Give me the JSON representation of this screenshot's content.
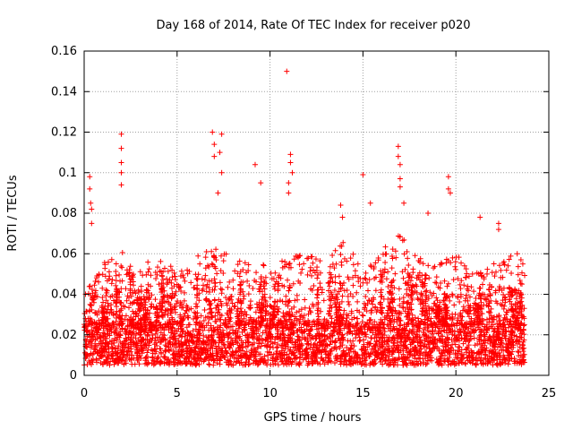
{
  "chart_data": {
    "type": "scatter",
    "title": "Day 168 of 2014, Rate Of TEC Index for receiver p020",
    "xlabel": "GPS time / hours",
    "ylabel": "ROTI / TECUs",
    "xlim": [
      0,
      25
    ],
    "ylim": [
      0,
      0.16
    ],
    "x_ticks": [
      0,
      5,
      10,
      15,
      20,
      25
    ],
    "x_tick_labels": [
      "0",
      "5",
      "10",
      "15",
      "20",
      "25"
    ],
    "y_ticks": [
      0,
      0.02,
      0.04,
      0.06,
      0.08,
      0.1,
      0.12,
      0.14,
      0.16
    ],
    "y_tick_labels": [
      "0",
      "0.02",
      "0.04",
      "0.06",
      "0.08",
      "0.1",
      "0.12",
      "0.14",
      "0.16"
    ],
    "grid": true,
    "marker": "plus",
    "series_color": "#ff0000",
    "x_data_range": [
      0,
      23.7
    ],
    "baseline_band": [
      0.005,
      0.025
    ],
    "peaks": [
      {
        "x": 2.0,
        "y": 0.119
      },
      {
        "x": 2.0,
        "y": 0.112
      },
      {
        "x": 2.0,
        "y": 0.105
      },
      {
        "x": 2.0,
        "y": 0.1
      },
      {
        "x": 2.0,
        "y": 0.094
      },
      {
        "x": 0.3,
        "y": 0.098
      },
      {
        "x": 0.3,
        "y": 0.092
      },
      {
        "x": 0.35,
        "y": 0.085
      },
      {
        "x": 0.4,
        "y": 0.082
      },
      {
        "x": 0.4,
        "y": 0.075
      },
      {
        "x": 6.9,
        "y": 0.12
      },
      {
        "x": 7.0,
        "y": 0.114
      },
      {
        "x": 7.0,
        "y": 0.108
      },
      {
        "x": 7.4,
        "y": 0.119
      },
      {
        "x": 7.3,
        "y": 0.11
      },
      {
        "x": 7.4,
        "y": 0.1
      },
      {
        "x": 7.2,
        "y": 0.09
      },
      {
        "x": 9.2,
        "y": 0.104
      },
      {
        "x": 9.5,
        "y": 0.095
      },
      {
        "x": 10.9,
        "y": 0.15
      },
      {
        "x": 11.1,
        "y": 0.109
      },
      {
        "x": 11.1,
        "y": 0.105
      },
      {
        "x": 11.2,
        "y": 0.1
      },
      {
        "x": 11.0,
        "y": 0.095
      },
      {
        "x": 11.0,
        "y": 0.09
      },
      {
        "x": 13.8,
        "y": 0.084
      },
      {
        "x": 13.9,
        "y": 0.078
      },
      {
        "x": 15.0,
        "y": 0.099
      },
      {
        "x": 15.4,
        "y": 0.085
      },
      {
        "x": 16.9,
        "y": 0.113
      },
      {
        "x": 16.9,
        "y": 0.108
      },
      {
        "x": 17.0,
        "y": 0.104
      },
      {
        "x": 17.0,
        "y": 0.097
      },
      {
        "x": 17.0,
        "y": 0.093
      },
      {
        "x": 17.2,
        "y": 0.085
      },
      {
        "x": 18.5,
        "y": 0.08
      },
      {
        "x": 19.6,
        "y": 0.098
      },
      {
        "x": 19.6,
        "y": 0.092
      },
      {
        "x": 19.7,
        "y": 0.09
      },
      {
        "x": 21.3,
        "y": 0.078
      },
      {
        "x": 22.3,
        "y": 0.075
      },
      {
        "x": 22.3,
        "y": 0.072
      },
      {
        "x": 23.3,
        "y": 0.06
      },
      {
        "x": 23.5,
        "y": 0.057
      },
      {
        "x": 23.6,
        "y": 0.055
      }
    ],
    "envelope_hours": [
      0,
      1,
      2,
      3,
      4,
      5,
      6,
      7,
      8,
      9,
      10,
      11,
      12,
      13,
      14,
      15,
      16,
      17,
      18,
      19,
      20,
      21,
      22,
      23,
      23.7
    ],
    "envelope_values": [
      0.04,
      0.055,
      0.062,
      0.055,
      0.058,
      0.052,
      0.058,
      0.065,
      0.058,
      0.055,
      0.055,
      0.058,
      0.062,
      0.055,
      0.068,
      0.052,
      0.065,
      0.07,
      0.06,
      0.055,
      0.06,
      0.05,
      0.055,
      0.06,
      0.055
    ]
  }
}
